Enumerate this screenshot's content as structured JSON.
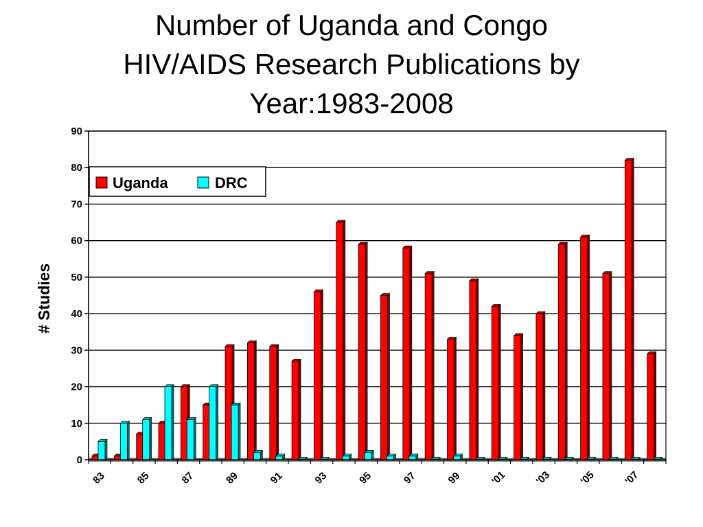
{
  "chart_data": {
    "type": "bar",
    "title": [
      "Number of Uganda and Congo",
      "HIV/AIDS Research Publications by",
      "Year:1983-2008"
    ],
    "ylabel": "# Studies",
    "xlabel": "",
    "ylim": [
      0,
      90
    ],
    "yticks": [
      0,
      10,
      20,
      30,
      40,
      50,
      60,
      70,
      80,
      90
    ],
    "grid": true,
    "legend_position": "top-left",
    "years": [
      1983,
      1984,
      1985,
      1986,
      1987,
      1988,
      1989,
      1990,
      1991,
      1992,
      1993,
      1994,
      1995,
      1996,
      1997,
      1998,
      1999,
      2000,
      2001,
      2002,
      2003,
      2004,
      2005,
      2006,
      2007,
      2008
    ],
    "xtick_labels": [
      "83",
      "85",
      "87",
      "89",
      "91",
      "93",
      "95",
      "97",
      "99",
      "'01",
      "'03",
      "'05",
      "'07"
    ],
    "series": [
      {
        "name": "Uganda",
        "color": "#ff0000",
        "values": [
          1,
          1,
          7,
          10,
          20,
          15,
          31,
          32,
          31,
          27,
          46,
          65,
          59,
          45,
          58,
          51,
          33,
          49,
          42,
          34,
          40,
          59,
          61,
          51,
          82,
          29
        ]
      },
      {
        "name": "DRC",
        "color": "#00ffff",
        "values": [
          5,
          10,
          11,
          20,
          11,
          20,
          15,
          2,
          1,
          0,
          0,
          1,
          2,
          1,
          1,
          0,
          1,
          0,
          0,
          0,
          0,
          0,
          0,
          0,
          0,
          0
        ]
      }
    ]
  }
}
